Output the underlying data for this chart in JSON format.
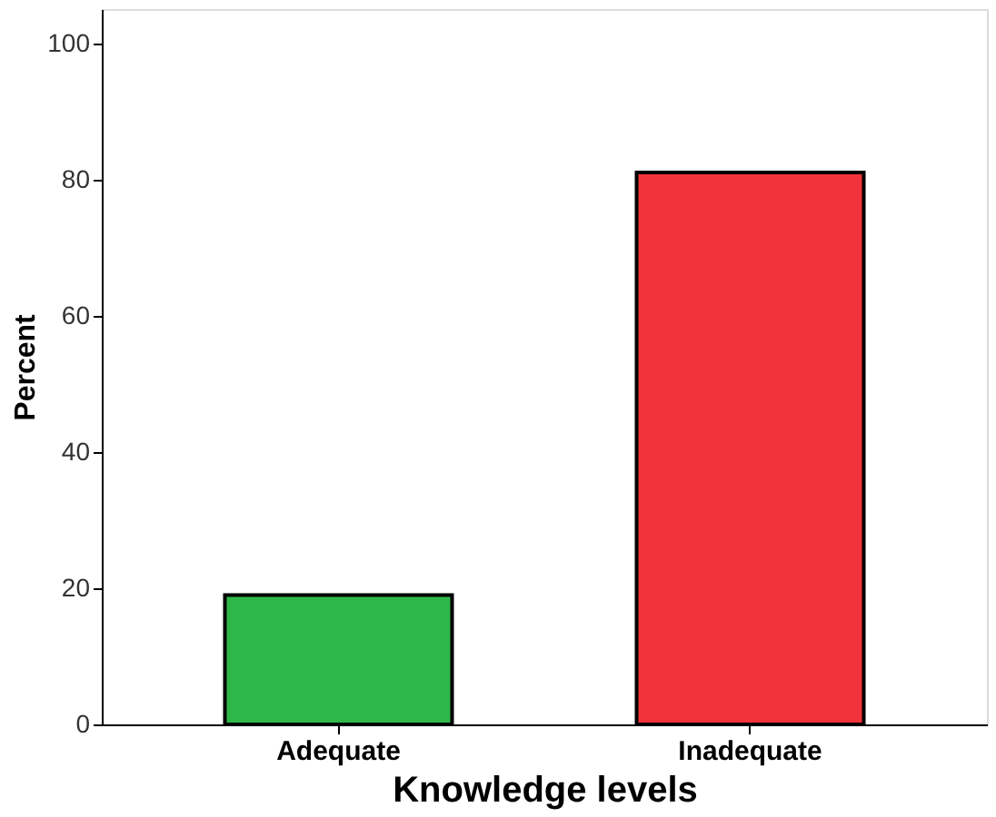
{
  "chart_data": {
    "type": "bar",
    "xlabel": "Knowledge levels",
    "ylabel": "Percent",
    "categories": [
      "Adequate",
      "Inadequate"
    ],
    "values": [
      19,
      81
    ],
    "colors": [
      "#2fb84a",
      "#f2333b"
    ],
    "ylim": [
      0,
      105
    ],
    "yticks": [
      0,
      20,
      40,
      60,
      80,
      100
    ],
    "grid": false
  }
}
